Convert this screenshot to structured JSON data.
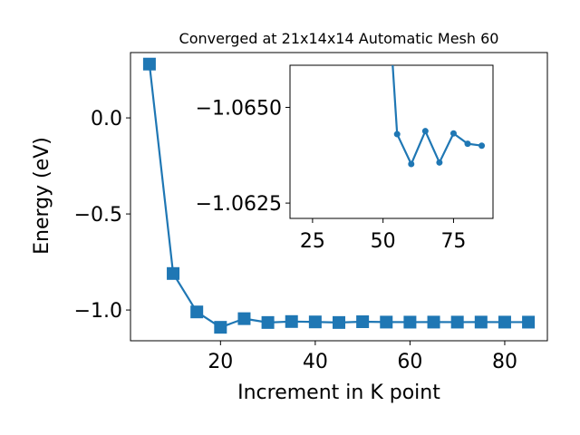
{
  "chart_data": [
    {
      "type": "line",
      "title": "Converged at 21x14x14 Automatic Mesh 60",
      "xlabel": "Increment in K point",
      "ylabel": "Energy (eV)",
      "xlim": [
        1,
        89
      ],
      "ylim": [
        -1.16,
        0.34
      ],
      "xticks": [
        20,
        40,
        60,
        80
      ],
      "yticks": [
        0.0,
        -0.5,
        -1.0
      ],
      "xtick_labels": [
        "20",
        "40",
        "60",
        "80"
      ],
      "ytick_labels": [
        "0.0",
        "−0.5",
        "−1.0"
      ],
      "marker": "square",
      "color": "#1f77b4",
      "grid": false,
      "series": [
        {
          "x": [
            5,
            10,
            15,
            20,
            25,
            30,
            35,
            40,
            45,
            50,
            55,
            60,
            65,
            70,
            75,
            80,
            85
          ],
          "y": [
            0.28,
            -0.81,
            -1.01,
            -1.09,
            -1.045,
            -1.065,
            -1.06,
            -1.062,
            -1.065,
            -1.061,
            -1.0629,
            -1.0631,
            -1.0629,
            -1.063,
            -1.0629,
            -1.063,
            -1.0631
          ]
        }
      ]
    },
    {
      "type": "line",
      "title": "",
      "xlabel": "",
      "ylabel": "",
      "xlim": [
        17,
        89
      ],
      "ylim": [
        -1.0621,
        -1.0661
      ],
      "xticks": [
        25,
        50,
        75
      ],
      "yticks": [
        -1.065,
        -1.0625
      ],
      "xtick_labels": [
        "25",
        "50",
        "75"
      ],
      "ytick_labels": [
        "−1.0650",
        "−1.0625"
      ],
      "marker": "circle",
      "color": "#1f77b4",
      "grid": false,
      "series": [
        {
          "x": [
            50,
            55,
            60,
            65,
            70,
            75,
            80,
            85
          ],
          "y": [
            -1.07,
            -1.0643,
            -1.06352,
            -1.06438,
            -1.06356,
            -1.06432,
            -1.06405,
            -1.064
          ]
        }
      ]
    }
  ]
}
